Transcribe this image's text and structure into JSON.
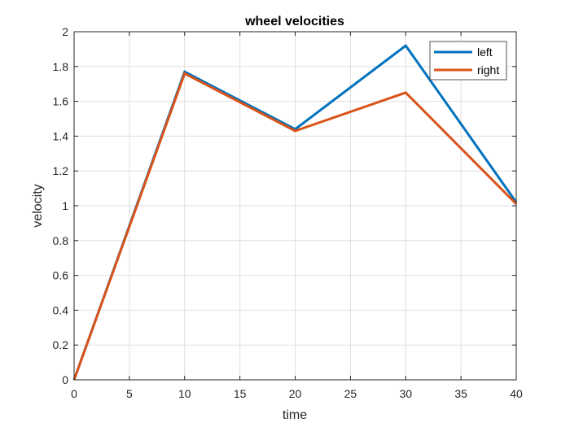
{
  "chart_data": {
    "type": "line",
    "title": "wheel velocities",
    "xlabel": "time",
    "ylabel": "velocity",
    "xlim": [
      0,
      40
    ],
    "ylim": [
      0,
      2
    ],
    "xticks": [
      0,
      5,
      10,
      15,
      20,
      25,
      30,
      35,
      40
    ],
    "yticks": [
      0,
      0.2,
      0.4,
      0.6,
      0.8,
      1,
      1.2,
      1.4,
      1.6,
      1.8,
      2
    ],
    "xtick_labels": [
      "0",
      "5",
      "10",
      "15",
      "20",
      "25",
      "30",
      "35",
      "40"
    ],
    "ytick_labels": [
      "0",
      "0.2",
      "0.4",
      "0.6",
      "0.8",
      "1",
      "1.2",
      "1.4",
      "1.6",
      "1.8",
      "2"
    ],
    "grid": true,
    "legend_position": "top-right",
    "x": [
      0,
      10,
      20,
      30,
      40
    ],
    "series": [
      {
        "name": "left",
        "color": "#0072BD",
        "values": [
          0,
          1.77,
          1.44,
          1.92,
          1.02
        ]
      },
      {
        "name": "right",
        "color": "#D95319",
        "values": [
          0,
          1.76,
          1.43,
          1.65,
          1.01
        ]
      }
    ]
  }
}
